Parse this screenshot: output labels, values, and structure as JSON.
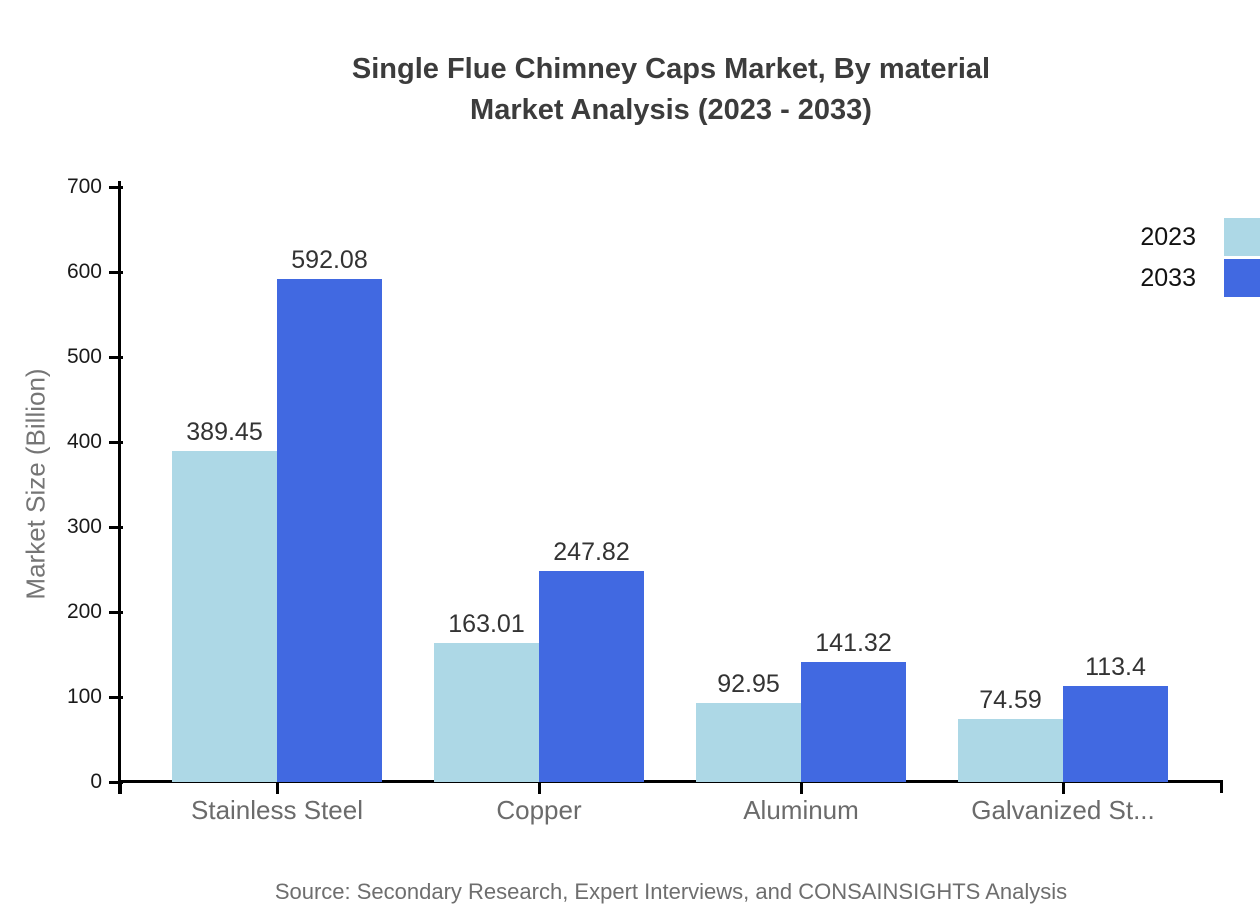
{
  "header": {
    "title_line1": "Single Flue Chimney Caps Market, By material",
    "title_line2": "Market Analysis (2023 - 2033)"
  },
  "footer": {
    "source": "Source: Secondary Research, Expert Interviews, and CONSAINSIGHTS Analysis"
  },
  "colors": {
    "series_2023": "#ADD8E6",
    "series_2033": "#4169E1",
    "axis": "#000000",
    "title_text": "#3c3c3c",
    "category_text": "#6b6b6b",
    "value_text": "#333333",
    "muted_text": "#757575"
  },
  "chart_data": {
    "type": "bar",
    "title": "Single Flue Chimney Caps Market, By material Market Analysis (2023 - 2033)",
    "xlabel": "",
    "ylabel": "Market Size (Billion)",
    "categories": [
      "Stainless Steel",
      "Copper",
      "Aluminum",
      "Galvanized St..."
    ],
    "series": [
      {
        "name": "2023",
        "color": "#ADD8E6",
        "values": [
          389.45,
          163.01,
          92.95,
          74.59
        ]
      },
      {
        "name": "2033",
        "color": "#4169E1",
        "values": [
          592.08,
          247.82,
          141.32,
          113.4
        ]
      }
    ],
    "ylim": [
      0,
      700
    ],
    "yticks": [
      0,
      100,
      200,
      300,
      400,
      500,
      600,
      700
    ],
    "grid": false,
    "legend_position": "top-right",
    "value_labels": true
  }
}
